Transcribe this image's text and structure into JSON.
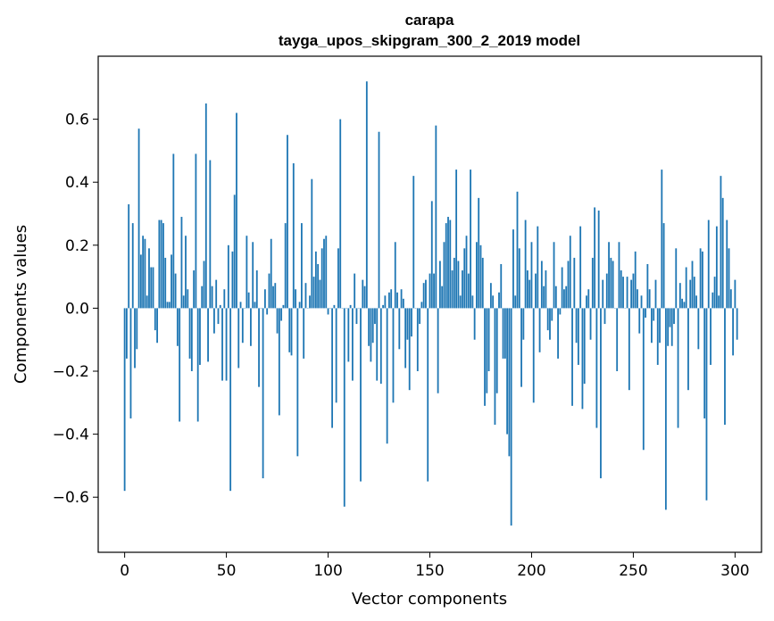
{
  "chart_data": {
    "type": "bar",
    "title": "carapa",
    "subtitle": "tayga_upos_skipgram_300_2_2019 model",
    "xlabel": "Vector components",
    "ylabel": "Components values",
    "xlim": [
      -13,
      313
    ],
    "ylim": [
      -0.775,
      0.8
    ],
    "xticks": [
      0,
      50,
      100,
      150,
      200,
      250,
      300
    ],
    "xtick_labels": [
      "0",
      "50",
      "100",
      "150",
      "200",
      "250",
      "300"
    ],
    "yticks": [
      -0.6,
      -0.4,
      -0.2,
      0.0,
      0.2,
      0.4,
      0.6
    ],
    "ytick_labels": [
      "−0.6",
      "−0.4",
      "−0.2",
      "0.0",
      "0.2",
      "0.4",
      "0.6"
    ],
    "bar_color": "#1f77b4",
    "values": [
      -0.58,
      -0.16,
      0.33,
      -0.35,
      0.27,
      -0.19,
      -0.13,
      0.57,
      0.17,
      0.23,
      0.22,
      0.04,
      0.19,
      0.13,
      0.13,
      -0.07,
      -0.11,
      0.28,
      0.28,
      0.27,
      0.16,
      0.02,
      0.02,
      0.17,
      0.49,
      0.11,
      -0.12,
      -0.36,
      0.29,
      0.04,
      0.23,
      0.06,
      -0.16,
      -0.2,
      0.12,
      0.49,
      -0.36,
      -0.18,
      0.07,
      0.15,
      0.65,
      -0.17,
      0.47,
      0.07,
      -0.08,
      0.09,
      -0.05,
      0.01,
      -0.23,
      0.06,
      -0.23,
      0.2,
      -0.58,
      0.18,
      0.36,
      0.62,
      -0.19,
      0.02,
      -0.11,
      0.0,
      0.23,
      0.05,
      -0.12,
      0.21,
      0.02,
      0.12,
      -0.25,
      0.0,
      -0.54,
      0.06,
      -0.02,
      0.11,
      0.22,
      0.07,
      0.08,
      -0.08,
      -0.34,
      -0.04,
      0.01,
      0.27,
      0.55,
      -0.14,
      -0.15,
      0.46,
      0.06,
      -0.47,
      0.02,
      0.27,
      -0.16,
      0.08,
      0.0,
      0.04,
      0.41,
      0.1,
      0.18,
      0.14,
      0.09,
      0.19,
      0.22,
      0.23,
      -0.02,
      0.0,
      -0.38,
      0.01,
      -0.3,
      0.19,
      0.6,
      0.0,
      -0.63,
      0.0,
      -0.17,
      0.01,
      -0.23,
      0.11,
      -0.05,
      0.0,
      -0.55,
      0.09,
      0.07,
      0.72,
      -0.12,
      -0.17,
      -0.11,
      -0.05,
      -0.23,
      0.56,
      -0.24,
      0.01,
      0.04,
      -0.43,
      0.05,
      0.06,
      -0.3,
      0.21,
      0.05,
      -0.13,
      0.06,
      0.03,
      -0.19,
      -0.1,
      -0.26,
      -0.09,
      0.42,
      0.0,
      -0.2,
      -0.05,
      0.02,
      0.08,
      0.09,
      -0.55,
      0.11,
      0.34,
      0.11,
      0.58,
      -0.27,
      0.15,
      0.07,
      0.21,
      0.27,
      0.29,
      0.28,
      0.12,
      0.16,
      0.44,
      0.15,
      0.04,
      0.12,
      0.19,
      0.23,
      0.11,
      0.44,
      0.04,
      -0.1,
      0.21,
      0.35,
      0.2,
      0.16,
      -0.31,
      -0.27,
      -0.2,
      0.08,
      0.04,
      -0.37,
      -0.27,
      0.05,
      0.14,
      -0.16,
      -0.16,
      -0.4,
      -0.47,
      -0.69,
      0.25,
      0.04,
      0.37,
      0.19,
      -0.25,
      -0.1,
      0.28,
      0.12,
      0.09,
      0.21,
      -0.3,
      0.11,
      0.26,
      -0.14,
      0.15,
      0.07,
      0.12,
      -0.07,
      -0.1,
      -0.04,
      0.21,
      0.07,
      -0.16,
      -0.02,
      0.13,
      0.06,
      0.07,
      0.15,
      0.23,
      -0.31,
      0.16,
      -0.11,
      -0.18,
      0.26,
      -0.32,
      -0.24,
      0.04,
      0.06,
      -0.1,
      0.16,
      0.32,
      -0.38,
      0.31,
      -0.54,
      0.09,
      -0.05,
      0.11,
      0.21,
      0.16,
      0.15,
      0.0,
      -0.2,
      0.21,
      0.12,
      0.1,
      0.0,
      0.1,
      -0.26,
      0.09,
      0.11,
      0.18,
      0.06,
      -0.08,
      0.04,
      -0.45,
      -0.03,
      0.14,
      0.06,
      -0.11,
      -0.04,
      0.09,
      -0.18,
      -0.11,
      0.44,
      0.27,
      -0.64,
      -0.12,
      -0.06,
      -0.12,
      -0.05,
      0.19,
      -0.38,
      0.08,
      0.03,
      0.02,
      0.13,
      -0.26,
      0.09,
      0.15,
      0.1,
      0.04,
      -0.13,
      0.19,
      0.18,
      -0.35,
      -0.61,
      0.28,
      -0.18,
      0.05,
      0.1,
      0.26,
      0.04,
      0.42,
      0.35,
      -0.37,
      0.28,
      0.19,
      0.06,
      -0.15,
      0.09,
      -0.1
    ]
  }
}
